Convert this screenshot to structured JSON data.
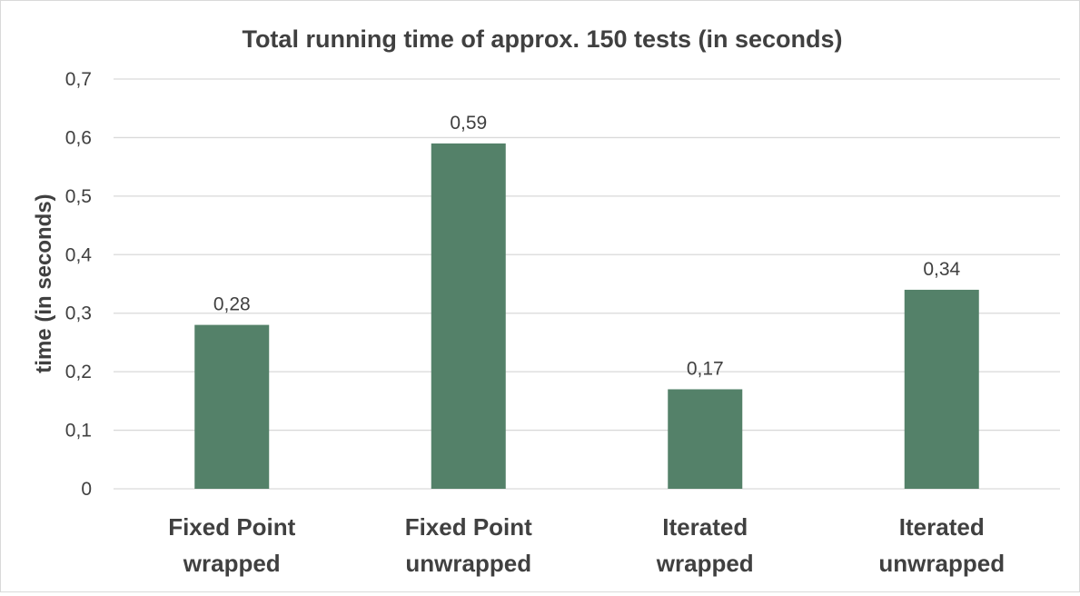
{
  "chart_data": {
    "type": "bar",
    "title": "Total running time of approx. 150 tests (in seconds)",
    "xlabel": "",
    "ylabel": "time (in seconds)",
    "categories": [
      [
        "Fixed Point",
        "wrapped"
      ],
      [
        "Fixed Point",
        "unwrapped"
      ],
      [
        "Iterated",
        "wrapped"
      ],
      [
        "Iterated",
        "unwrapped"
      ]
    ],
    "values": [
      0.28,
      0.59,
      0.17,
      0.34
    ],
    "data_labels": [
      "0,28",
      "0,59",
      "0,17",
      "0,34"
    ],
    "ylim": [
      0,
      0.7
    ],
    "yticks": [
      0,
      0.1,
      0.2,
      0.3,
      0.4,
      0.5,
      0.6,
      0.7
    ],
    "ytick_labels": [
      "0",
      "0,1",
      "0,2",
      "0,3",
      "0,4",
      "0,5",
      "0,6",
      "0,7"
    ],
    "grid": true,
    "legend": "none",
    "bar_color": "#548169",
    "text_color": "#404040",
    "grid_color": "#d9d9d9"
  }
}
